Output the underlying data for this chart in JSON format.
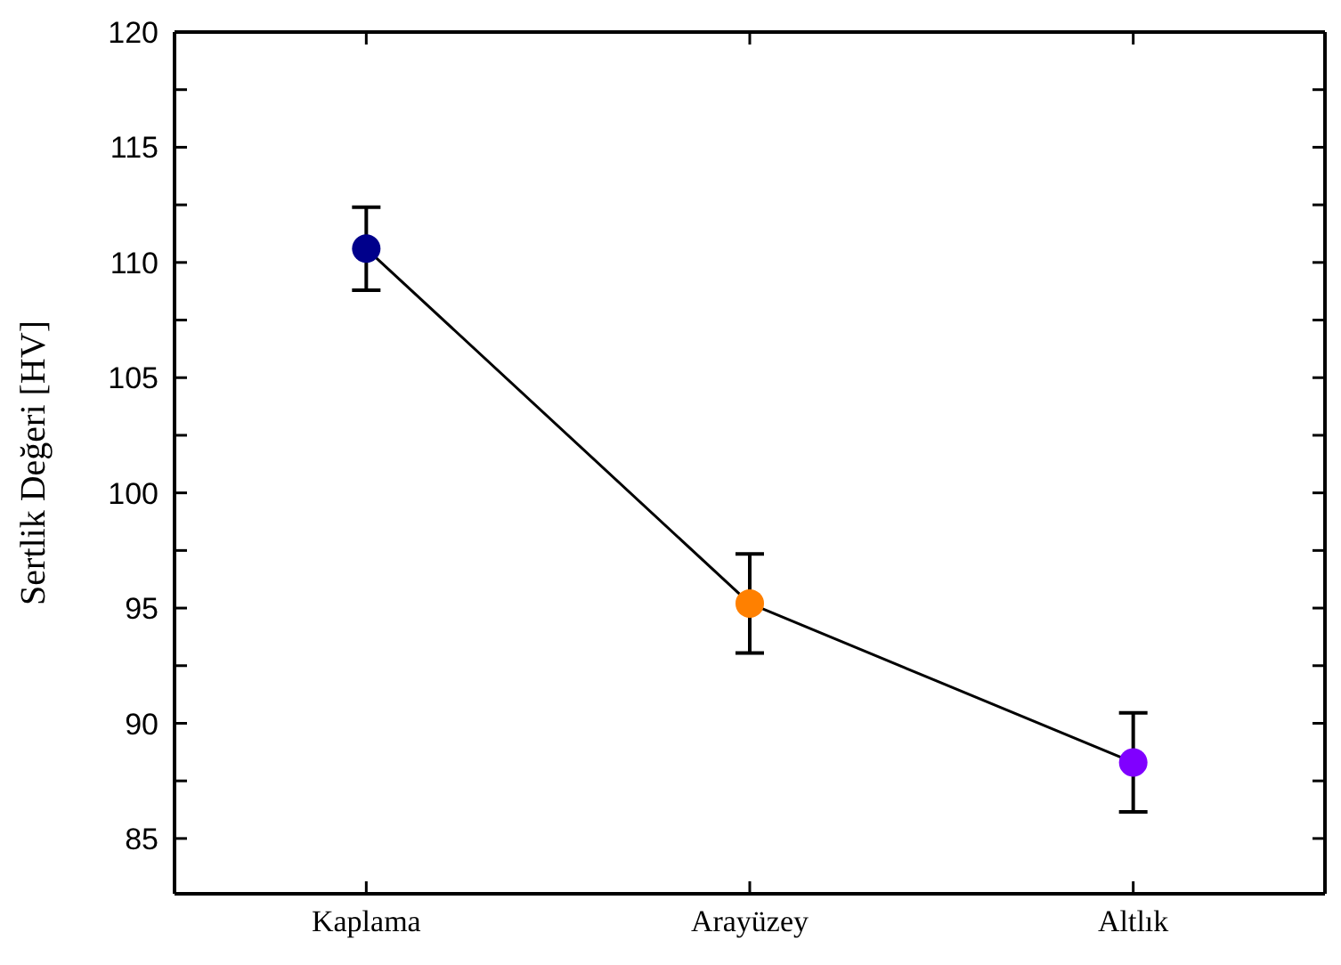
{
  "chart_data": {
    "type": "line",
    "ylabel": "Sertlik Değeri [HV]",
    "categories": [
      "Kaplama",
      "Arayüzey",
      "Altlık"
    ],
    "series": [
      {
        "color": "#000000",
        "colors": [
          "#00008b",
          "#ff8000",
          "#8000ff"
        ],
        "values": [
          110.6,
          95.2,
          88.3
        ],
        "errors": [
          1.8,
          2.15,
          2.15
        ]
      }
    ],
    "ylim": [
      82.6,
      120
    ],
    "yticks": [
      85,
      {
        "value": 87.5,
        "label": null
      },
      90,
      {
        "value": 92.5,
        "label": null
      },
      95,
      {
        "value": 97.5,
        "label": null
      },
      100,
      {
        "value": 102.5,
        "label": null
      },
      105,
      {
        "value": 107.5,
        "label": null
      },
      110,
      {
        "value": 112.5,
        "label": null
      },
      115,
      {
        "value": 117.5,
        "label": null
      },
      120
    ],
    "marker": "circle",
    "line_style": "solid",
    "grid": false
  }
}
